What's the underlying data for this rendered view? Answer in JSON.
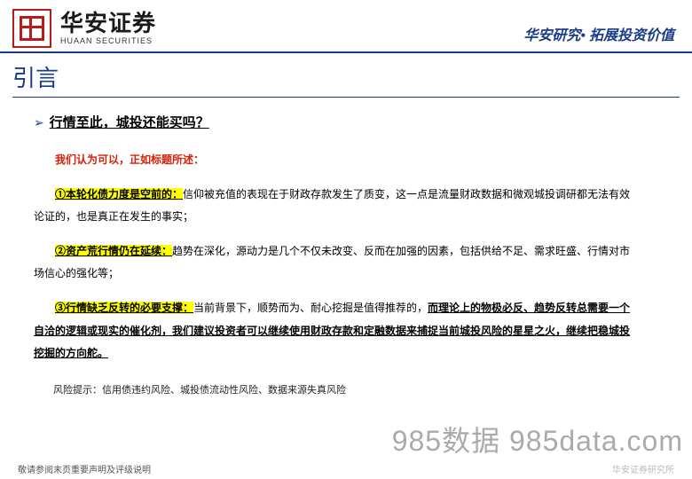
{
  "header": {
    "logo_cn": "华安证券",
    "logo_en": "HUAAN SECURITIES",
    "tagline": "华安研究• 拓展投资价值"
  },
  "section_title": "引言",
  "question": "行情至此，城投还能买吗？",
  "intro": "我们认为可以，正如标题所述：",
  "p1": {
    "hl": "①本轮化债力度是空前的：",
    "rest": "信仰被充值的表现在于财政存款发生了质变，这一点是流量财政数据和微观城投调研都无法有效论证的，也是真正在发生的事实；"
  },
  "p2": {
    "hl": "②资产荒行情仍在延续：",
    "rest": "趋势在深化，源动力是几个不仅未改变、反而在加强的因素，包括供给不足、需求旺盛、行情对市场信心的强化等；"
  },
  "p3": {
    "hl": "③行情缺乏反转的必要支撑：",
    "plain": "当前背景下，顺势而为、耐心挖掘是值得推荐的，",
    "bold": "而理论上的物极必反、趋势反转总需要一个自洽的逻辑或现实的催化剂，我们建议投资者可以继续使用财政存款和定融数据来捕捉当前城投风险的星星之火，继续把稳城投挖掘的方向舵。"
  },
  "risk": "风险提示：信用债违约风险、城投债流动性风险、数据来源失真风险",
  "watermark": "985数据 985data.com",
  "footer_left": "敬请参阅末页重要声明及评级说明",
  "footer_right": "华安证券研究所"
}
